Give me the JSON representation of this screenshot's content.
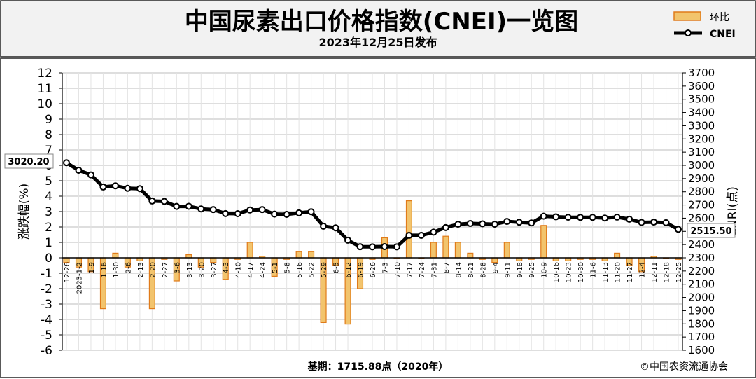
{
  "header": {
    "title": "中国尿素出口价格指数(CNEI)一览图",
    "subtitle": "2023年12月25日发布",
    "legend": [
      {
        "label": "环比",
        "type": "bar"
      },
      {
        "label": "CNEI",
        "type": "line"
      }
    ]
  },
  "axes": {
    "left_label": "涨跌幅(%)",
    "right_label": "CNRI(点)"
  },
  "footer": {
    "base": "基期：1715.88点（2020年）",
    "copyright": "©中国农资流通协会"
  },
  "callouts": {
    "start": "3020.20",
    "end": "2515.50"
  },
  "colors": {
    "bar_fill": "#f2c46d",
    "bar_stroke": "#e07b1a",
    "line": "#000000",
    "grid": "#bdbdbd",
    "plot_bg": "#ffffff",
    "header_bg": "#f2f2f2"
  },
  "chart_data": {
    "type": "bar+line",
    "title": "中国尿素出口价格指数(CNEI)一览图",
    "subtitle": "2023年12月25日发布",
    "categories": [
      "12-26",
      "2023-1-2",
      "1-9",
      "1-16",
      "1-30",
      "2-6",
      "2-13",
      "2-20",
      "2-27",
      "3-6",
      "3-13",
      "3-20",
      "3-27",
      "4-3",
      "4-10",
      "4-17",
      "4-24",
      "5-1",
      "5-8",
      "5-16",
      "5-22",
      "5-29",
      "6-5",
      "6-12",
      "6-19",
      "6-26",
      "7-3",
      "7-10",
      "7-17",
      "7-24",
      "7-31",
      "8-7",
      "8-14",
      "8-21",
      "8-28",
      "9-4",
      "9-11",
      "9-18",
      "9-25",
      "10-9",
      "10-16",
      "10-23",
      "10-30",
      "11-6",
      "11-13",
      "11-20",
      "11-27",
      "12-4",
      "12-11",
      "12-18",
      "12-25"
    ],
    "series": [
      {
        "name": "环比",
        "type": "bar",
        "axis": "left",
        "values": [
          -0.3,
          -0.6,
          -0.9,
          -3.3,
          0.3,
          -0.6,
          -0.2,
          -3.3,
          -0.1,
          -1.5,
          0.2,
          -0.6,
          -0.3,
          -1.4,
          -0.1,
          1.0,
          0.1,
          -1.2,
          -0.1,
          0.4,
          0.4,
          -4.2,
          -0.5,
          -4.3,
          -2.0,
          -0.1,
          1.3,
          0.0,
          3.7,
          0.0,
          1.0,
          1.4,
          1.0,
          0.3,
          -0.1,
          -0.3,
          1.0,
          -0.2,
          -0.1,
          2.1,
          -0.2,
          -0.2,
          -0.1,
          -0.1,
          -0.2,
          0.3,
          -0.5,
          -0.9,
          0.1,
          -0.05,
          -0.1
        ]
      },
      {
        "name": "CNEI",
        "type": "line",
        "axis": "right",
        "values": [
          3020.2,
          2963,
          2928,
          2836,
          2845,
          2826,
          2824,
          2730,
          2727,
          2689,
          2690,
          2670,
          2665,
          2635,
          2634,
          2662,
          2665,
          2631,
          2629,
          2640,
          2649,
          2539,
          2527,
          2433,
          2384,
          2383,
          2385,
          2383,
          2470,
          2470,
          2494,
          2529,
          2554,
          2560,
          2557,
          2554,
          2575,
          2569,
          2564,
          2615,
          2610,
          2607,
          2606,
          2606,
          2601,
          2608,
          2592,
          2568,
          2570,
          2566,
          2515.5
        ]
      }
    ],
    "y_left": {
      "label": "涨跌幅(%)",
      "min": -6,
      "max": 12,
      "step": 1
    },
    "y_right": {
      "label": "CNRI(点)",
      "min": 1600,
      "max": 3700,
      "step": 100
    },
    "grid": true,
    "legend_position": "top-right"
  }
}
